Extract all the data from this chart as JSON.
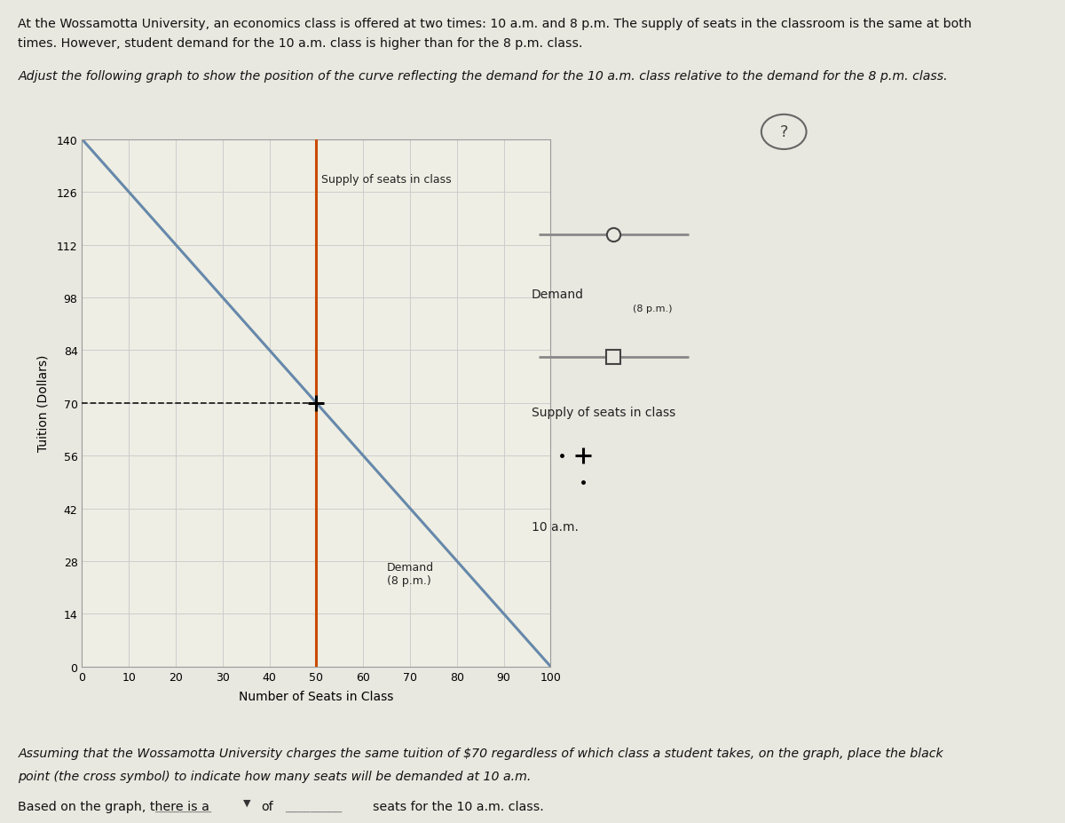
{
  "title_line1": "At the Wossamotta University, an economics class is offered at two times: 10 a.m. and 8 p.m. The supply of seats in the classroom is the same at both",
  "title_line2": "times. However, student demand for the 10 a.m. class is higher than for the 8 p.m. class.",
  "adjust_text": "Adjust the following graph to show the position of the curve reflecting the demand for the 10 a.m. class relative to the demand for the 8 p.m. class.",
  "bottom_text1": "Assuming that the Wossamotta University charges the same tuition of $70 regardless of which class a student takes, on the graph, place the black",
  "bottom_text2": "point (the cross symbol) to indicate how many seats will be demanded at 10 a.m.",
  "bottom_text3": "Based on the graph, there is a",
  "bottom_text4": "of",
  "bottom_text5": "seats for the 10 a.m. class.",
  "ylabel": "Tuition (Dollars)",
  "xlabel": "Number of Seats in Class",
  "yticks": [
    0,
    14,
    28,
    42,
    56,
    70,
    84,
    98,
    112,
    126,
    140
  ],
  "xticks": [
    0,
    10,
    20,
    30,
    40,
    50,
    60,
    70,
    80,
    90,
    100
  ],
  "xlim": [
    0,
    100
  ],
  "ylim": [
    0,
    140
  ],
  "supply_x": 50,
  "supply_color": "#c84b00",
  "demand_8pm_x1": 0,
  "demand_8pm_y1": 140,
  "demand_8pm_x2": 100,
  "demand_8pm_y2": 0,
  "demand_color": "#6688aa",
  "dashed_line_y": 70,
  "dashed_line_x1": 0,
  "dashed_line_x2": 50,
  "dashed_color": "#222222",
  "cross_x": 50,
  "cross_y": 70,
  "cross_color": "#000000",
  "grid_color": "#cccccc",
  "plot_bg_color": "#eeeee4",
  "outer_bg_color": "#e8e8e0",
  "page_bg_color": "#e8e8e0",
  "supply_label": "Supply of seats in class",
  "demand_label": "Demand",
  "demand_sublabel": "(8 p.m.)",
  "legend_line_color": "#888888",
  "border_color": "#aaaaaa"
}
